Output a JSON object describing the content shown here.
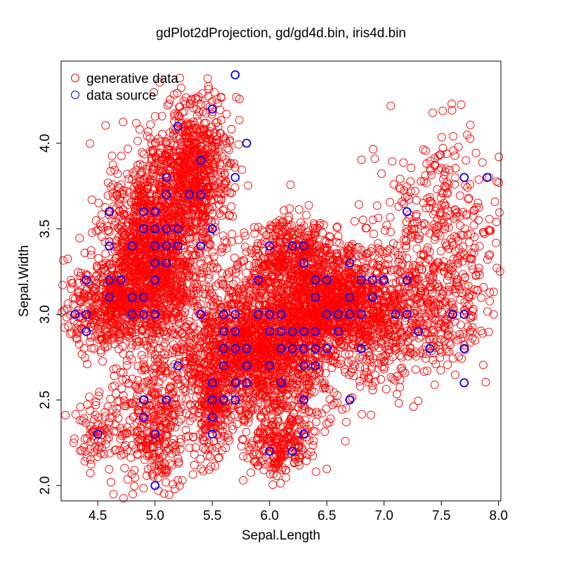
{
  "chart_data": {
    "type": "scatter",
    "title": "gdPlot2dProjection, gd/gd4d.bin, iris4d.bin",
    "xlabel": "Sepal.Length",
    "ylabel": "Sepal.Width",
    "xlim": [
      4.18,
      8.02
    ],
    "ylim": [
      1.91,
      4.48
    ],
    "xticks": [
      4.5,
      5.0,
      5.5,
      6.0,
      6.5,
      7.0,
      7.5,
      8.0
    ],
    "xtick_labels": [
      "4.5",
      "5.0",
      "5.5",
      "6.0",
      "6.5",
      "7.0",
      "7.5",
      "8.0"
    ],
    "yticks": [
      2.0,
      2.5,
      3.0,
      3.5,
      4.0
    ],
    "ytick_labels": [
      "2.0",
      "2.5",
      "3.0",
      "3.5",
      "4.0"
    ],
    "grid": false,
    "legend_position": "top-left",
    "series": [
      {
        "name": "generative data",
        "color": "#ff0000",
        "marker": "open-circle",
        "clusters": [
          {
            "cx": 5.0,
            "cy": 3.35,
            "sx": 0.22,
            "sy": 0.28,
            "n": 1500
          },
          {
            "cx": 5.35,
            "cy": 3.85,
            "sx": 0.16,
            "sy": 0.22,
            "n": 700
          },
          {
            "cx": 4.65,
            "cy": 3.05,
            "sx": 0.18,
            "sy": 0.12,
            "n": 500
          },
          {
            "cx": 5.85,
            "cy": 2.8,
            "sx": 0.32,
            "sy": 0.2,
            "n": 1600
          },
          {
            "cx": 6.5,
            "cy": 3.05,
            "sx": 0.3,
            "sy": 0.17,
            "n": 1300
          },
          {
            "cx": 6.2,
            "cy": 3.35,
            "sx": 0.18,
            "sy": 0.1,
            "n": 350
          },
          {
            "cx": 7.2,
            "cy": 3.0,
            "sx": 0.35,
            "sy": 0.2,
            "n": 600
          },
          {
            "cx": 7.5,
            "cy": 3.55,
            "sx": 0.3,
            "sy": 0.25,
            "n": 300
          },
          {
            "cx": 6.1,
            "cy": 2.25,
            "sx": 0.15,
            "sy": 0.1,
            "n": 250
          },
          {
            "cx": 5.0,
            "cy": 2.35,
            "sx": 0.18,
            "sy": 0.2,
            "n": 350
          },
          {
            "cx": 4.5,
            "cy": 2.3,
            "sx": 0.08,
            "sy": 0.12,
            "n": 80
          },
          {
            "cx": 5.5,
            "cy": 2.45,
            "sx": 0.08,
            "sy": 0.15,
            "n": 200
          }
        ]
      },
      {
        "name": "data source",
        "color": "#0000ff",
        "marker": "open-circle",
        "points": [
          [
            5.7,
            4.4
          ],
          [
            5.5,
            4.2
          ],
          [
            5.2,
            4.1
          ],
          [
            5.8,
            4.0
          ],
          [
            5.4,
            3.9
          ],
          [
            5.1,
            3.8
          ],
          [
            5.7,
            3.8
          ],
          [
            7.7,
            3.8
          ],
          [
            7.9,
            3.8
          ],
          [
            5.1,
            3.7
          ],
          [
            5.3,
            3.7
          ],
          [
            5.4,
            3.7
          ],
          [
            4.6,
            3.6
          ],
          [
            4.9,
            3.6
          ],
          [
            5.0,
            3.6
          ],
          [
            7.2,
            3.6
          ],
          [
            4.9,
            3.5
          ],
          [
            5.0,
            3.5
          ],
          [
            5.1,
            3.5
          ],
          [
            5.2,
            3.5
          ],
          [
            5.5,
            3.5
          ],
          [
            4.6,
            3.4
          ],
          [
            4.8,
            3.4
          ],
          [
            5.0,
            3.4
          ],
          [
            5.1,
            3.4
          ],
          [
            5.2,
            3.4
          ],
          [
            5.4,
            3.4
          ],
          [
            6.0,
            3.4
          ],
          [
            6.2,
            3.4
          ],
          [
            6.3,
            3.4
          ],
          [
            5.0,
            3.3
          ],
          [
            5.1,
            3.3
          ],
          [
            6.3,
            3.3
          ],
          [
            6.7,
            3.3
          ],
          [
            4.4,
            3.2
          ],
          [
            4.6,
            3.2
          ],
          [
            4.7,
            3.2
          ],
          [
            5.0,
            3.2
          ],
          [
            5.9,
            3.2
          ],
          [
            6.4,
            3.2
          ],
          [
            6.5,
            3.2
          ],
          [
            6.8,
            3.2
          ],
          [
            6.9,
            3.2
          ],
          [
            7.0,
            3.2
          ],
          [
            7.2,
            3.2
          ],
          [
            4.6,
            3.1
          ],
          [
            4.8,
            3.1
          ],
          [
            4.9,
            3.1
          ],
          [
            6.4,
            3.1
          ],
          [
            6.7,
            3.1
          ],
          [
            6.9,
            3.1
          ],
          [
            4.3,
            3.0
          ],
          [
            4.4,
            3.0
          ],
          [
            4.8,
            3.0
          ],
          [
            4.9,
            3.0
          ],
          [
            5.0,
            3.0
          ],
          [
            5.4,
            3.0
          ],
          [
            5.6,
            3.0
          ],
          [
            5.7,
            3.0
          ],
          [
            5.9,
            3.0
          ],
          [
            6.0,
            3.0
          ],
          [
            6.1,
            3.0
          ],
          [
            6.5,
            3.0
          ],
          [
            6.6,
            3.0
          ],
          [
            6.7,
            3.0
          ],
          [
            6.8,
            3.0
          ],
          [
            7.1,
            3.0
          ],
          [
            7.2,
            3.0
          ],
          [
            7.6,
            3.0
          ],
          [
            7.7,
            3.0
          ],
          [
            4.4,
            2.9
          ],
          [
            5.6,
            2.9
          ],
          [
            5.7,
            2.9
          ],
          [
            6.0,
            2.9
          ],
          [
            6.1,
            2.9
          ],
          [
            6.2,
            2.9
          ],
          [
            6.3,
            2.9
          ],
          [
            6.4,
            2.9
          ],
          [
            6.6,
            2.9
          ],
          [
            7.3,
            2.9
          ],
          [
            5.6,
            2.8
          ],
          [
            5.7,
            2.8
          ],
          [
            5.8,
            2.8
          ],
          [
            6.1,
            2.8
          ],
          [
            6.2,
            2.8
          ],
          [
            6.3,
            2.8
          ],
          [
            6.4,
            2.8
          ],
          [
            6.5,
            2.8
          ],
          [
            6.8,
            2.8
          ],
          [
            7.4,
            2.8
          ],
          [
            7.7,
            2.8
          ],
          [
            5.2,
            2.7
          ],
          [
            5.6,
            2.7
          ],
          [
            5.8,
            2.7
          ],
          [
            6.0,
            2.7
          ],
          [
            6.3,
            2.7
          ],
          [
            6.4,
            2.7
          ],
          [
            5.5,
            2.6
          ],
          [
            5.7,
            2.6
          ],
          [
            5.8,
            2.6
          ],
          [
            6.1,
            2.6
          ],
          [
            7.7,
            2.6
          ],
          [
            4.9,
            2.5
          ],
          [
            5.1,
            2.5
          ],
          [
            5.5,
            2.5
          ],
          [
            5.6,
            2.5
          ],
          [
            5.7,
            2.5
          ],
          [
            6.3,
            2.5
          ],
          [
            6.7,
            2.5
          ],
          [
            4.9,
            2.4
          ],
          [
            5.5,
            2.4
          ],
          [
            4.5,
            2.3
          ],
          [
            5.0,
            2.3
          ],
          [
            5.5,
            2.3
          ],
          [
            6.3,
            2.3
          ],
          [
            6.0,
            2.2
          ],
          [
            6.2,
            2.2
          ],
          [
            5.0,
            2.0
          ]
        ]
      }
    ]
  }
}
